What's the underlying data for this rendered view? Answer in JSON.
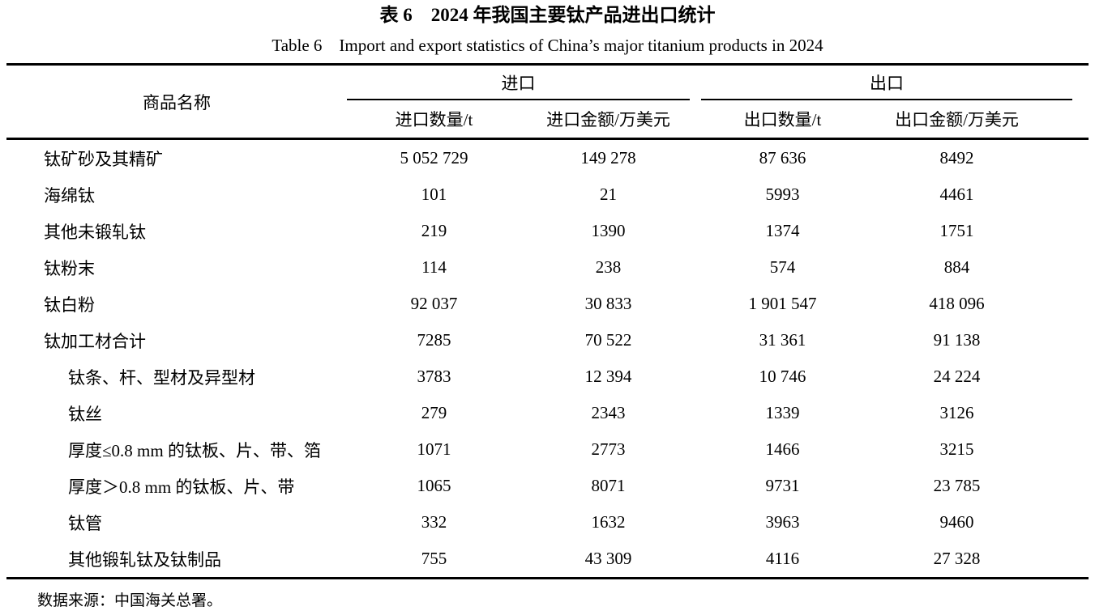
{
  "caption": {
    "title_cn": "表 6　2024 年我国主要钛产品进出口统计",
    "title_en": "Table 6　Import and export statistics of China’s major titanium products in 2024"
  },
  "table": {
    "col_product": "商品名称",
    "group_import": "进口",
    "group_export": "出口",
    "col_import_qty": "进口数量/t",
    "col_import_value": "进口金额/万美元",
    "col_export_qty": "出口数量/t",
    "col_export_value": "出口金额/万美元",
    "rows": [
      {
        "name": "钛矿砂及其精矿",
        "indent": false,
        "import_qty": "5 052 729",
        "import_value": "149 278",
        "export_qty": "87 636",
        "export_value": "8492"
      },
      {
        "name": "海绵钛",
        "indent": false,
        "import_qty": "101",
        "import_value": "21",
        "export_qty": "5993",
        "export_value": "4461"
      },
      {
        "name": "其他未锻轧钛",
        "indent": false,
        "import_qty": "219",
        "import_value": "1390",
        "export_qty": "1374",
        "export_value": "1751"
      },
      {
        "name": "钛粉末",
        "indent": false,
        "import_qty": "114",
        "import_value": "238",
        "export_qty": "574",
        "export_value": "884"
      },
      {
        "name": "钛白粉",
        "indent": false,
        "import_qty": "92 037",
        "import_value": "30 833",
        "export_qty": "1 901 547",
        "export_value": "418 096"
      },
      {
        "name": "钛加工材合计",
        "indent": false,
        "import_qty": "7285",
        "import_value": "70 522",
        "export_qty": "31 361",
        "export_value": "91 138"
      },
      {
        "name": "钛条、杆、型材及异型材",
        "indent": true,
        "import_qty": "3783",
        "import_value": "12 394",
        "export_qty": "10 746",
        "export_value": "24 224"
      },
      {
        "name": "钛丝",
        "indent": true,
        "import_qty": "279",
        "import_value": "2343",
        "export_qty": "1339",
        "export_value": "3126"
      },
      {
        "name": "厚度≤0.8 mm 的钛板、片、带、箔",
        "indent": true,
        "import_qty": "1071",
        "import_value": "2773",
        "export_qty": "1466",
        "export_value": "3215"
      },
      {
        "name": "厚度＞0.8 mm 的钛板、片、带",
        "indent": true,
        "import_qty": "1065",
        "import_value": "8071",
        "export_qty": "9731",
        "export_value": "23 785"
      },
      {
        "name": "钛管",
        "indent": true,
        "import_qty": "332",
        "import_value": "1632",
        "export_qty": "3963",
        "export_value": "9460"
      },
      {
        "name": "其他锻轧钛及钛制品",
        "indent": true,
        "import_qty": "755",
        "import_value": "43 309",
        "export_qty": "4116",
        "export_value": "27 328"
      }
    ],
    "source_note": "数据来源：中国海关总署。"
  }
}
